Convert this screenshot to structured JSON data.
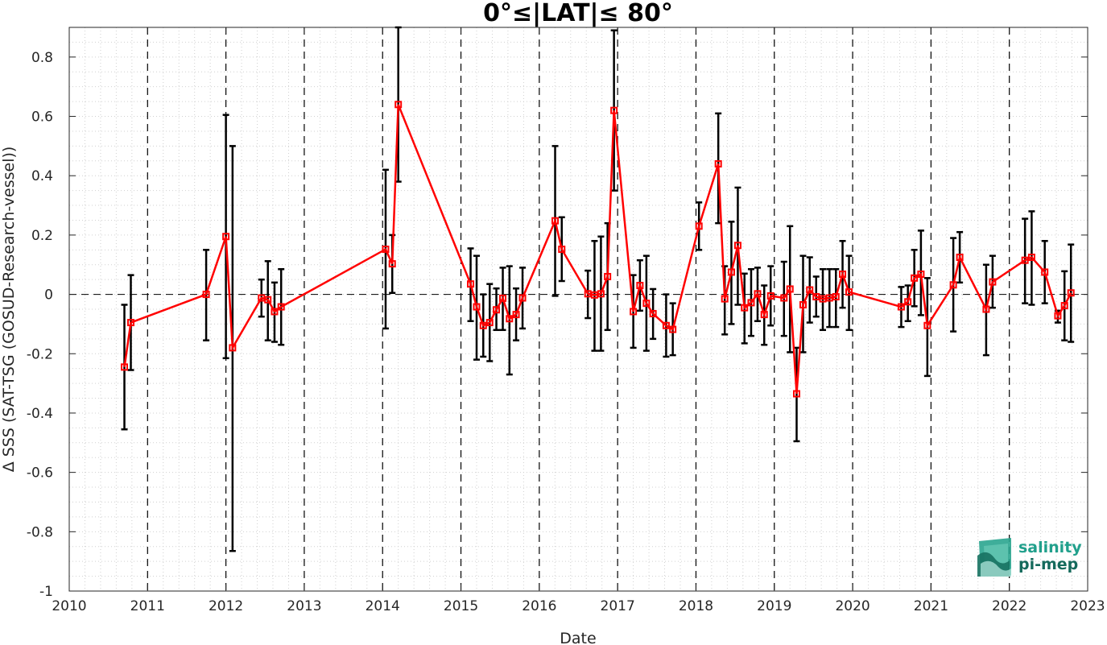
{
  "chart_data": {
    "type": "line",
    "title": "0°≤|LAT|≤ 80°",
    "xlabel": "Date",
    "ylabel": "Δ SSS (SAT-TSG (GOSUD-Research-vessel))",
    "xlim": [
      2010,
      2023
    ],
    "ylim": [
      -1,
      0.9
    ],
    "xticks": [
      "2010",
      "2011",
      "2012",
      "2013",
      "2014",
      "2015",
      "2016",
      "2017",
      "2018",
      "2019",
      "2020",
      "2021",
      "2022",
      "2023"
    ],
    "yticks": [
      "-1",
      "-0.8",
      "-0.6",
      "-0.4",
      "-0.2",
      "0",
      "0.2",
      "0.4",
      "0.6",
      "0.8"
    ],
    "grid": "dotted minor",
    "year_boundaries": "dashed vertical lines at each year",
    "zero_line": "dashed horizontal line at 0",
    "series": [
      {
        "color": "#ff0000",
        "errorbar_color": "#000000",
        "marker": "square",
        "x": [
          "2010-09-15",
          "2010-10-15",
          "2011-10-01",
          "2012-01-01",
          "2012-02-01",
          "2012-06-15",
          "2012-07-15",
          "2012-08-15",
          "2012-09-15",
          "2014-01-15",
          "2014-02-15",
          "2014-03-15",
          "2015-02-15",
          "2015-03-15",
          "2015-04-15",
          "2015-05-15",
          "2015-06-15",
          "2015-07-15",
          "2015-08-15",
          "2015-09-15",
          "2015-10-15",
          "2016-03-15",
          "2016-04-15",
          "2016-08-15",
          "2016-09-15",
          "2016-10-15",
          "2016-11-15",
          "2016-12-15",
          "2017-03-15",
          "2017-04-15",
          "2017-05-15",
          "2017-06-15",
          "2017-08-15",
          "2017-09-15",
          "2018-01-15",
          "2018-04-15",
          "2018-05-15",
          "2018-06-15",
          "2018-07-15",
          "2018-08-15",
          "2018-09-15",
          "2018-10-15",
          "2018-11-15",
          "2018-12-15",
          "2019-02-15",
          "2019-03-15",
          "2019-04-15",
          "2019-05-15",
          "2019-06-15",
          "2019-07-15",
          "2019-08-15",
          "2019-09-15",
          "2019-10-15",
          "2019-11-15",
          "2019-12-15",
          "2020-08-15",
          "2020-09-15",
          "2020-10-15",
          "2020-11-15",
          "2020-12-15",
          "2021-04-15",
          "2021-05-15",
          "2021-09-15",
          "2021-10-15",
          "2022-03-15",
          "2022-04-15",
          "2022-06-15",
          "2022-08-15",
          "2022-09-15",
          "2022-10-15"
        ],
        "y": [
          -0.245,
          -0.095,
          0.0,
          0.195,
          -0.18,
          -0.012,
          -0.018,
          -0.058,
          -0.042,
          0.152,
          0.103,
          0.64,
          0.035,
          -0.042,
          -0.105,
          -0.095,
          -0.052,
          -0.013,
          -0.082,
          -0.068,
          -0.012,
          0.248,
          0.152,
          0.002,
          -0.002,
          0.002,
          0.06,
          0.62,
          -0.058,
          0.03,
          -0.03,
          -0.065,
          -0.105,
          -0.118,
          0.23,
          0.44,
          -0.015,
          0.075,
          0.165,
          -0.045,
          -0.028,
          0.002,
          -0.068,
          -0.005,
          -0.012,
          0.018,
          -0.335,
          -0.035,
          0.015,
          -0.008,
          -0.015,
          -0.012,
          -0.008,
          0.068,
          0.008,
          -0.042,
          -0.025,
          0.055,
          0.068,
          -0.105,
          0.032,
          0.125,
          -0.05,
          0.042,
          0.115,
          0.125,
          0.075,
          -0.072,
          -0.038,
          0.005
        ],
        "err_low": [
          -0.455,
          -0.255,
          -0.155,
          -0.215,
          -0.865,
          -0.075,
          -0.155,
          -0.16,
          -0.17,
          -0.115,
          0.005,
          0.38,
          -0.09,
          -0.22,
          -0.21,
          -0.225,
          -0.12,
          -0.12,
          -0.27,
          -0.155,
          -0.115,
          -0.005,
          0.045,
          -0.08,
          -0.19,
          -0.19,
          -0.12,
          0.35,
          -0.18,
          -0.055,
          -0.19,
          -0.15,
          -0.21,
          -0.205,
          0.15,
          0.24,
          -0.135,
          -0.1,
          -0.035,
          -0.165,
          -0.14,
          -0.09,
          -0.17,
          -0.105,
          -0.14,
          -0.195,
          -0.495,
          -0.195,
          -0.095,
          -0.075,
          -0.12,
          -0.11,
          -0.11,
          -0.045,
          -0.12,
          -0.11,
          -0.09,
          -0.04,
          -0.07,
          -0.275,
          -0.125,
          0.04,
          -0.205,
          -0.045,
          -0.03,
          -0.035,
          -0.03,
          -0.095,
          -0.155,
          -0.16
        ],
        "err_high": [
          -0.035,
          0.065,
          0.15,
          0.605,
          0.5,
          0.05,
          0.112,
          0.04,
          0.085,
          0.42,
          0.2,
          0.9,
          0.155,
          0.13,
          0.0,
          0.035,
          0.02,
          0.09,
          0.095,
          0.02,
          0.09,
          0.5,
          0.26,
          0.08,
          0.18,
          0.195,
          0.24,
          0.89,
          0.065,
          0.115,
          0.13,
          0.018,
          0.0,
          -0.03,
          0.31,
          0.61,
          0.095,
          0.245,
          0.36,
          0.07,
          0.085,
          0.09,
          0.03,
          0.095,
          0.11,
          0.23,
          -0.18,
          0.13,
          0.125,
          0.06,
          0.085,
          0.085,
          0.085,
          0.18,
          0.13,
          0.025,
          0.03,
          0.15,
          0.215,
          0.055,
          0.19,
          0.21,
          0.1,
          0.13,
          0.255,
          0.28,
          0.18,
          -0.055,
          0.078,
          0.168
        ]
      }
    ]
  },
  "logo": {
    "line1": "salinity",
    "line2": "pi-mep",
    "color_light": "#21a08c",
    "color_dark": "#156a5c"
  }
}
